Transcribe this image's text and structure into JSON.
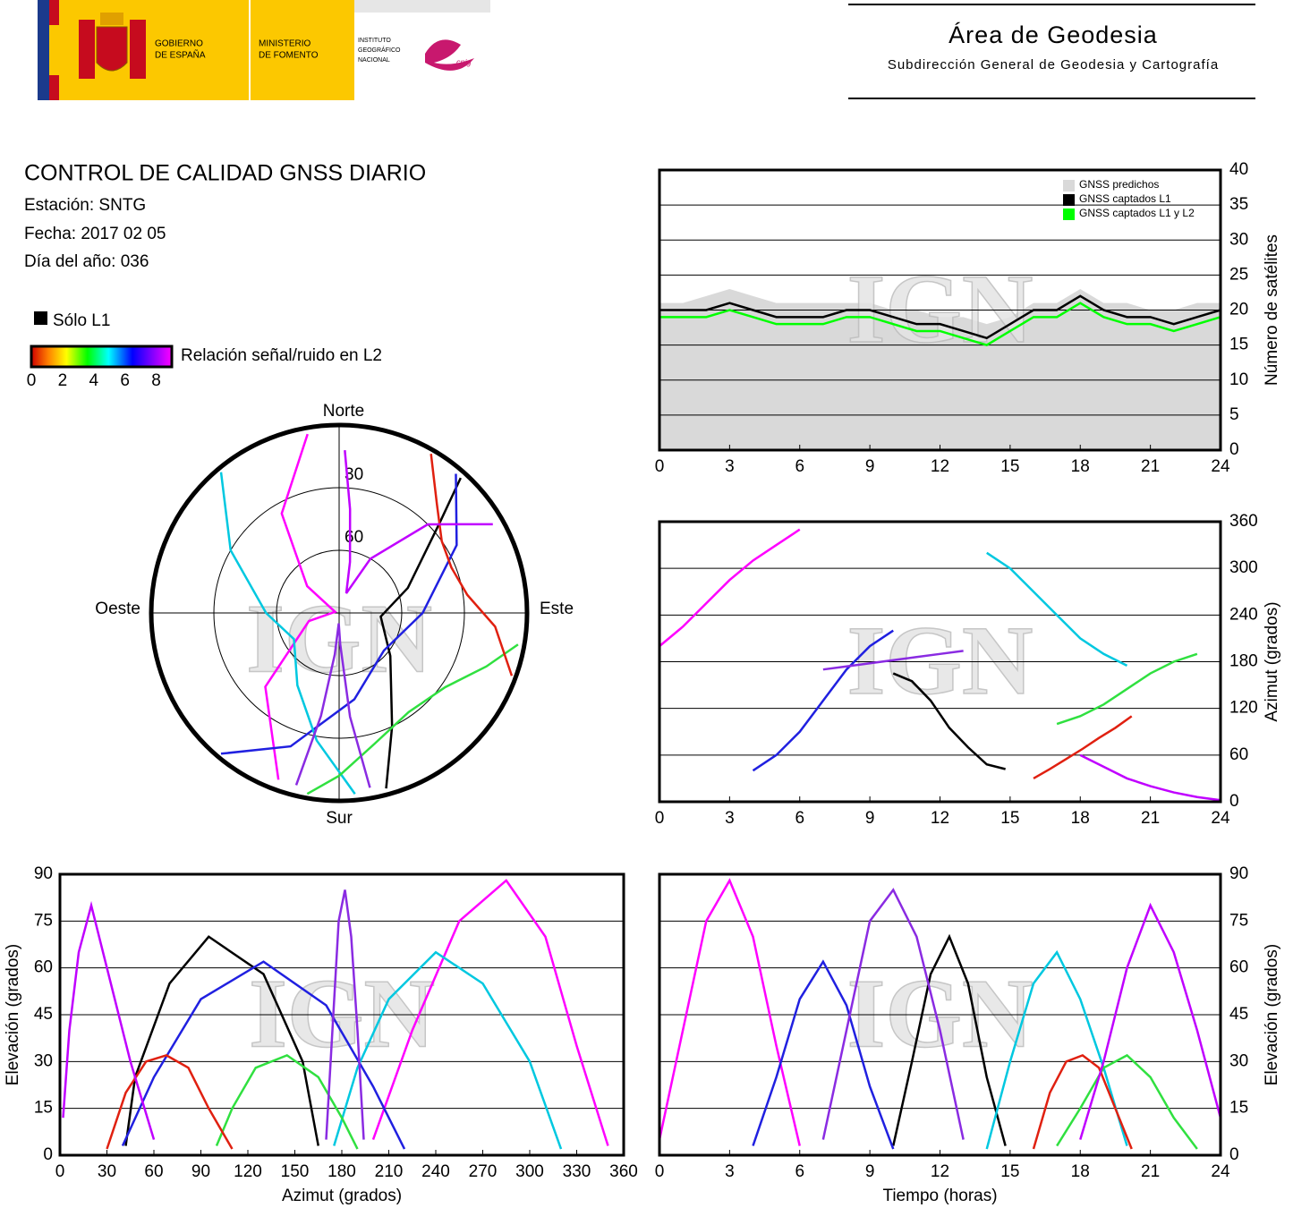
{
  "header": {
    "government": [
      "GOBIERNO",
      "DE ESPAÑA"
    ],
    "ministry": [
      "MINISTERIO",
      "DE FOMENTO"
    ],
    "institute": [
      "INSTITUTO",
      "GEOGRÁFICO",
      "NACIONAL"
    ],
    "cnig": "cnig",
    "area": "Área de Geodesia",
    "subdirectorate": "Subdirección General de Geodesia y Cartografía"
  },
  "report": {
    "title": "CONTROL DE CALIDAD GNSS DIARIO",
    "station": "Estación: SNTG",
    "date": "Fecha: 2017 02 05",
    "day_of_year": "Día del año: 036"
  },
  "legend": {
    "l1_only": "Sólo L1",
    "colorbar": {
      "label": "Relación señal/ruido en L2",
      "ticks": [
        0,
        2,
        4,
        6,
        8
      ],
      "lim": [
        0,
        9
      ]
    }
  },
  "chart_data": [
    {
      "type": "line",
      "watermark": "IGN",
      "y_label": "Número de satélites",
      "y_axis_side": "right",
      "grid": true,
      "legend": "upper right",
      "xlim": [
        0,
        24
      ],
      "xticks": [
        0,
        3,
        6,
        9,
        12,
        15,
        18,
        21,
        24
      ],
      "ylim": [
        0,
        40
      ],
      "yticks": [
        0,
        5,
        10,
        15,
        20,
        25,
        30,
        35,
        40
      ],
      "x": [
        0,
        1,
        2,
        3,
        4,
        5,
        6,
        7,
        8,
        9,
        10,
        11,
        12,
        13,
        14,
        15,
        16,
        17,
        18,
        19,
        20,
        21,
        22,
        23,
        24
      ],
      "series": [
        {
          "name": "GNSS predichos",
          "color": "#d9d9d9",
          "fill": true,
          "values": [
            21,
            21,
            22,
            23,
            22,
            21,
            21,
            21,
            21,
            21,
            20,
            20,
            19,
            19,
            18,
            19,
            21,
            21,
            23,
            21,
            21,
            20,
            20,
            21,
            21
          ]
        },
        {
          "name": "GNSS captados L1",
          "color": "#000000",
          "values": [
            20,
            20,
            20,
            21,
            20,
            19,
            19,
            19,
            20,
            20,
            19,
            18,
            18,
            17,
            16,
            18,
            20,
            20,
            22,
            20,
            19,
            19,
            18,
            19,
            20
          ]
        },
        {
          "name": "GNSS captados L1 y L2",
          "color": "#00ff00",
          "values": [
            19,
            19,
            19,
            20,
            19,
            18,
            18,
            18,
            19,
            19,
            18,
            17,
            17,
            16,
            15,
            17,
            19,
            19,
            21,
            19,
            18,
            18,
            17,
            18,
            19
          ]
        }
      ]
    },
    {
      "type": "polar",
      "watermark": "IGN",
      "labels": {
        "north": "Norte",
        "south": "Sur",
        "east": "Este",
        "west": "Oeste"
      },
      "rlim": [
        90,
        0
      ],
      "rings": [
        30,
        60
      ],
      "series": [
        {
          "color": "#000000",
          "azimuth": [
            165,
            155,
            130,
            95,
            70,
            48,
            42
          ],
          "elevation": [
            3,
            30,
            58,
            70,
            55,
            25,
            3
          ]
        },
        {
          "color": "#ff00ff",
          "azimuth": [
            200,
            225,
            255,
            285,
            310,
            330,
            350
          ],
          "elevation": [
            5,
            40,
            75,
            88,
            70,
            35,
            3
          ]
        },
        {
          "color": "#2020e0",
          "azimuth": [
            40,
            60,
            90,
            130,
            170,
            200,
            220
          ],
          "elevation": [
            3,
            25,
            50,
            62,
            48,
            22,
            2
          ]
        },
        {
          "color": "#00c8e0",
          "azimuth": [
            320,
            300,
            270,
            240,
            210,
            190,
            175
          ],
          "elevation": [
            2,
            30,
            55,
            65,
            50,
            28,
            3
          ]
        },
        {
          "color": "#30e040",
          "azimuth": [
            100,
            110,
            125,
            145,
            165,
            180,
            190
          ],
          "elevation": [
            3,
            15,
            28,
            32,
            25,
            12,
            2
          ]
        },
        {
          "color": "#e02010",
          "azimuth": [
            30,
            42,
            55,
            68,
            82,
            95,
            110
          ],
          "elevation": [
            2,
            20,
            30,
            32,
            28,
            15,
            2
          ]
        },
        {
          "color": "#8a2be2",
          "azimuth": [
            170,
            174,
            178,
            182,
            186,
            190,
            194
          ],
          "elevation": [
            5,
            40,
            75,
            85,
            70,
            40,
            5
          ]
        },
        {
          "color": "#c000ff",
          "azimuth": [
            60,
            45,
            30,
            20,
            12,
            6,
            2
          ],
          "elevation": [
            5,
            30,
            60,
            80,
            65,
            40,
            12
          ]
        }
      ]
    },
    {
      "type": "line",
      "watermark": "IGN",
      "y_label": "Azimut (grados)",
      "y_axis_side": "right",
      "grid": true,
      "xlim": [
        0,
        24
      ],
      "xticks": [
        0,
        3,
        6,
        9,
        12,
        15,
        18,
        21,
        24
      ],
      "ylim": [
        0,
        360
      ],
      "yticks": [
        0,
        60,
        120,
        180,
        240,
        300,
        360
      ],
      "series": [
        {
          "color": "#000000",
          "x": [
            10,
            10.8,
            11.6,
            12.4,
            13.2,
            14,
            14.8
          ],
          "values": [
            165,
            155,
            130,
            95,
            70,
            48,
            42
          ]
        },
        {
          "color": "#ff00ff",
          "x": [
            0,
            1,
            2,
            3,
            4,
            5,
            6
          ],
          "values": [
            200,
            225,
            255,
            285,
            310,
            330,
            350
          ]
        },
        {
          "color": "#2020e0",
          "x": [
            4,
            5,
            6,
            7,
            8,
            9,
            10
          ],
          "values": [
            40,
            60,
            90,
            130,
            170,
            200,
            220
          ]
        },
        {
          "color": "#00c8e0",
          "x": [
            14,
            15,
            16,
            17,
            18,
            19,
            20
          ],
          "values": [
            320,
            300,
            270,
            240,
            210,
            190,
            175
          ]
        },
        {
          "color": "#30e040",
          "x": [
            17,
            18,
            19,
            20,
            21,
            22,
            23
          ],
          "values": [
            100,
            110,
            125,
            145,
            165,
            180,
            190
          ]
        },
        {
          "color": "#e02010",
          "x": [
            16,
            16.7,
            17.4,
            18.1,
            18.8,
            19.5,
            20.2
          ],
          "values": [
            30,
            42,
            55,
            68,
            82,
            95,
            110
          ]
        },
        {
          "color": "#8a2be2",
          "x": [
            7,
            8,
            9,
            10,
            11,
            12,
            13
          ],
          "values": [
            170,
            174,
            178,
            182,
            186,
            190,
            194
          ]
        },
        {
          "color": "#c000ff",
          "x": [
            18,
            19,
            20,
            21,
            22,
            23,
            24
          ],
          "values": [
            60,
            45,
            30,
            20,
            12,
            6,
            2
          ]
        }
      ]
    },
    {
      "type": "line",
      "watermark": "IGN",
      "x_label": "Azimut (grados)",
      "y_label": "Elevación (grados)",
      "y_axis_side": "left",
      "grid": true,
      "xlim": [
        0,
        360
      ],
      "xticks": [
        0,
        30,
        60,
        90,
        120,
        150,
        180,
        210,
        240,
        270,
        300,
        330,
        360
      ],
      "ylim": [
        0,
        90
      ],
      "yticks": [
        0,
        15,
        30,
        45,
        60,
        75,
        90
      ],
      "series": [
        {
          "color": "#000000",
          "x": [
            165,
            155,
            130,
            95,
            70,
            48,
            42
          ],
          "values": [
            3,
            30,
            58,
            70,
            55,
            25,
            3
          ]
        },
        {
          "color": "#ff00ff",
          "x": [
            200,
            225,
            255,
            285,
            310,
            330,
            350
          ],
          "values": [
            5,
            40,
            75,
            88,
            70,
            35,
            3
          ]
        },
        {
          "color": "#2020e0",
          "x": [
            40,
            60,
            90,
            130,
            170,
            200,
            220
          ],
          "values": [
            3,
            25,
            50,
            62,
            48,
            22,
            2
          ]
        },
        {
          "color": "#00c8e0",
          "x": [
            320,
            300,
            270,
            240,
            210,
            190,
            175
          ],
          "values": [
            2,
            30,
            55,
            65,
            50,
            28,
            3
          ]
        },
        {
          "color": "#30e040",
          "x": [
            100,
            110,
            125,
            145,
            165,
            180,
            190
          ],
          "values": [
            3,
            15,
            28,
            32,
            25,
            12,
            2
          ]
        },
        {
          "color": "#e02010",
          "x": [
            30,
            42,
            55,
            68,
            82,
            95,
            110
          ],
          "values": [
            2,
            20,
            30,
            32,
            28,
            15,
            2
          ]
        },
        {
          "color": "#8a2be2",
          "x": [
            170,
            174,
            178,
            182,
            186,
            190,
            194
          ],
          "values": [
            5,
            40,
            75,
            85,
            70,
            40,
            5
          ]
        },
        {
          "color": "#c000ff",
          "x": [
            60,
            45,
            30,
            20,
            12,
            6,
            2
          ],
          "values": [
            5,
            30,
            60,
            80,
            65,
            40,
            12
          ]
        }
      ]
    },
    {
      "type": "line",
      "watermark": "IGN",
      "x_label": "Tiempo (horas)",
      "y_label": "Elevación (grados)",
      "y_axis_side": "right",
      "grid": true,
      "xlim": [
        0,
        24
      ],
      "xticks": [
        0,
        3,
        6,
        9,
        12,
        15,
        18,
        21,
        24
      ],
      "ylim": [
        0,
        90
      ],
      "yticks": [
        0,
        15,
        30,
        45,
        60,
        75,
        90
      ],
      "series": [
        {
          "color": "#000000",
          "x": [
            10,
            10.8,
            11.6,
            12.4,
            13.2,
            14,
            14.8
          ],
          "values": [
            3,
            30,
            58,
            70,
            55,
            25,
            3
          ]
        },
        {
          "color": "#ff00ff",
          "x": [
            0,
            1,
            2,
            3,
            4,
            5,
            6
          ],
          "values": [
            5,
            40,
            75,
            88,
            70,
            35,
            3
          ]
        },
        {
          "color": "#2020e0",
          "x": [
            4,
            5,
            6,
            7,
            8,
            9,
            10
          ],
          "values": [
            3,
            25,
            50,
            62,
            48,
            22,
            2
          ]
        },
        {
          "color": "#00c8e0",
          "x": [
            14,
            15,
            16,
            17,
            18,
            19,
            20
          ],
          "values": [
            2,
            30,
            55,
            65,
            50,
            28,
            3
          ]
        },
        {
          "color": "#30e040",
          "x": [
            17,
            18,
            19,
            20,
            21,
            22,
            23
          ],
          "values": [
            3,
            15,
            28,
            32,
            25,
            12,
            2
          ]
        },
        {
          "color": "#e02010",
          "x": [
            16,
            16.7,
            17.4,
            18.1,
            18.8,
            19.5,
            20.2
          ],
          "values": [
            2,
            20,
            30,
            32,
            28,
            15,
            2
          ]
        },
        {
          "color": "#8a2be2",
          "x": [
            7,
            8,
            9,
            10,
            11,
            12,
            13
          ],
          "values": [
            5,
            40,
            75,
            85,
            70,
            40,
            5
          ]
        },
        {
          "color": "#c000ff",
          "x": [
            18,
            19,
            20,
            21,
            22,
            23,
            24
          ],
          "values": [
            5,
            30,
            60,
            80,
            65,
            40,
            12
          ]
        }
      ]
    }
  ]
}
